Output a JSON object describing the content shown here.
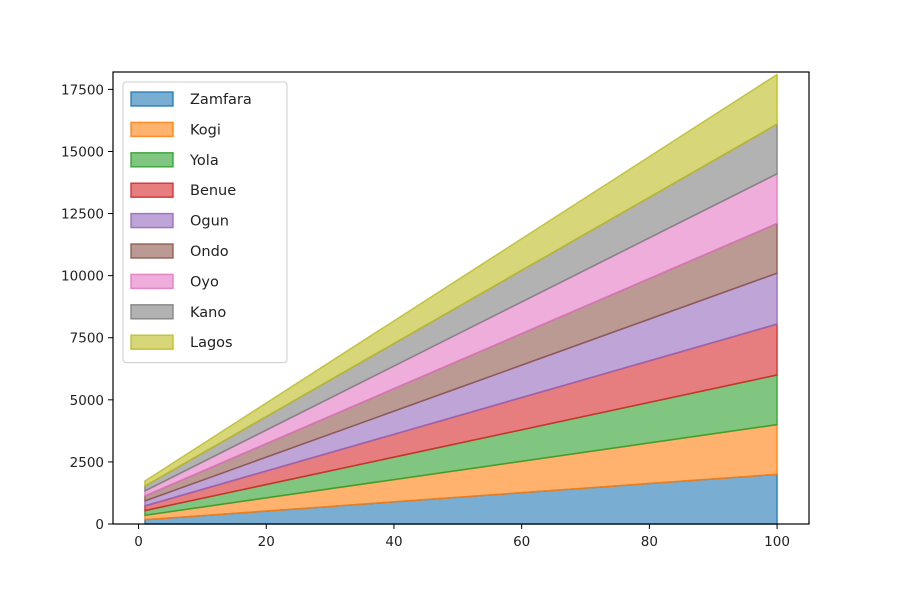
{
  "chart_data": {
    "type": "area",
    "stacked": true,
    "x": [
      1,
      100
    ],
    "xlim": [
      -4,
      105
    ],
    "ylim": [
      0,
      18200
    ],
    "xticks": [
      0,
      20,
      40,
      60,
      80,
      100
    ],
    "yticks": [
      0,
      2500,
      5000,
      7500,
      10000,
      12500,
      15000,
      17500
    ],
    "xtick_labels": [
      "0",
      "20",
      "40",
      "60",
      "80",
      "100"
    ],
    "ytick_labels": [
      "0",
      "2500",
      "5000",
      "7500",
      "10000",
      "12500",
      "15000",
      "17500"
    ],
    "grid": false,
    "legend_position": "top-left",
    "series": [
      {
        "name": "Zamfara",
        "color": "#1f77b4",
        "values": [
          170,
          2000
        ]
      },
      {
        "name": "Kogi",
        "color": "#ff7f0e",
        "values": [
          180,
          2000
        ]
      },
      {
        "name": "Yola",
        "color": "#2ca02c",
        "values": [
          190,
          2000
        ]
      },
      {
        "name": "Benue",
        "color": "#d62728",
        "values": [
          190,
          2050
        ]
      },
      {
        "name": "Ogun",
        "color": "#9467bd",
        "values": [
          200,
          2050
        ]
      },
      {
        "name": "Ondo",
        "color": "#8c564b",
        "values": [
          200,
          2000
        ]
      },
      {
        "name": "Oyo",
        "color": "#e377c2",
        "values": [
          200,
          2000
        ]
      },
      {
        "name": "Kano",
        "color": "#7f7f7f",
        "values": [
          200,
          2000
        ]
      },
      {
        "name": "Lagos",
        "color": "#bcbd22",
        "values": [
          200,
          2000
        ]
      }
    ]
  }
}
